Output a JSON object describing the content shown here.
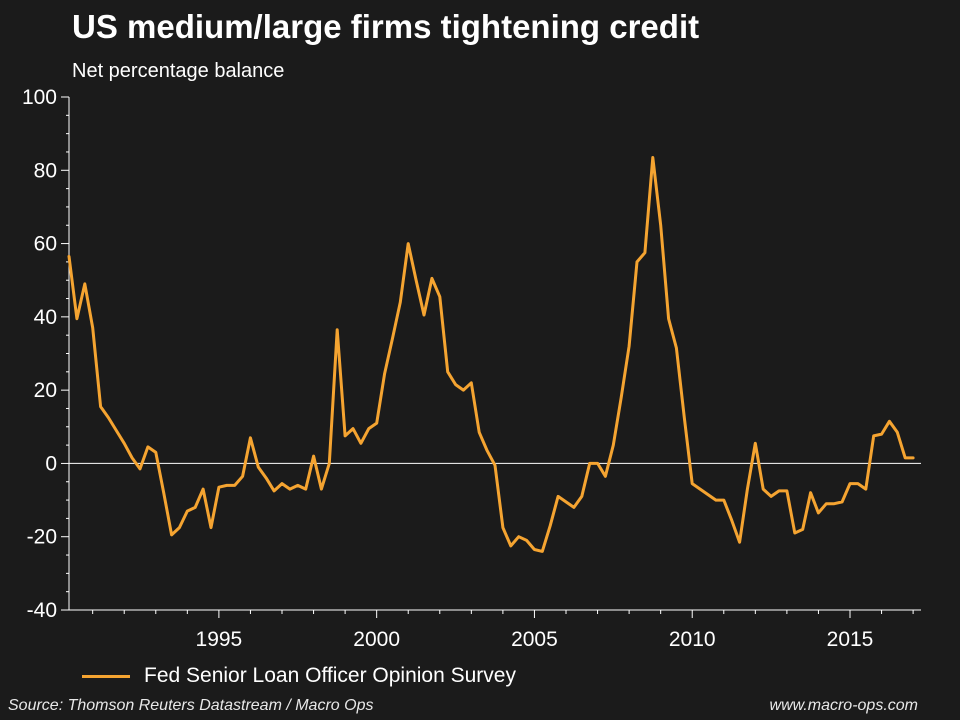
{
  "chart_data": {
    "type": "line",
    "title": "US medium/large firms tightening credit",
    "subtitle": "Net percentage balance",
    "xlabel": "",
    "ylabel": "",
    "xlim": [
      1990.25,
      2017.25
    ],
    "ylim": [
      -40,
      100
    ],
    "yticks": [
      -40,
      -20,
      0,
      20,
      40,
      60,
      80,
      100
    ],
    "xticks": [
      1995,
      2000,
      2005,
      2010,
      2015
    ],
    "zero_line": true,
    "grid": false,
    "legend_position": "bottom-left",
    "series": [
      {
        "name": "Fed Senior Loan Officer Opinion Survey",
        "color": "#f5a431",
        "points": [
          [
            1990.25,
            56.5
          ],
          [
            1990.5,
            39.5
          ],
          [
            1990.75,
            49
          ],
          [
            1991.0,
            37
          ],
          [
            1991.25,
            15.5
          ],
          [
            1991.5,
            12.5
          ],
          [
            1991.75,
            9
          ],
          [
            1992.0,
            5.5
          ],
          [
            1992.25,
            1.5
          ],
          [
            1992.5,
            -1.5
          ],
          [
            1992.75,
            4.5
          ],
          [
            1993.0,
            3
          ],
          [
            1993.25,
            -8
          ],
          [
            1993.5,
            -19.5
          ],
          [
            1993.75,
            -17.5
          ],
          [
            1994.0,
            -13
          ],
          [
            1994.25,
            -12
          ],
          [
            1994.5,
            -7
          ],
          [
            1994.75,
            -17.5
          ],
          [
            1995.0,
            -6.5
          ],
          [
            1995.25,
            -6
          ],
          [
            1995.5,
            -6
          ],
          [
            1995.75,
            -3.5
          ],
          [
            1996.0,
            7
          ],
          [
            1996.25,
            -1
          ],
          [
            1996.5,
            -4
          ],
          [
            1996.75,
            -7.5
          ],
          [
            1997.0,
            -5.5
          ],
          [
            1997.25,
            -7
          ],
          [
            1997.5,
            -6
          ],
          [
            1997.75,
            -7
          ],
          [
            1998.0,
            2
          ],
          [
            1998.25,
            -7
          ],
          [
            1998.5,
            0
          ],
          [
            1998.75,
            36.5
          ],
          [
            1999.0,
            7.5
          ],
          [
            1999.25,
            9.5
          ],
          [
            1999.5,
            5.5
          ],
          [
            1999.75,
            9.5
          ],
          [
            2000.0,
            11
          ],
          [
            2000.25,
            24.5
          ],
          [
            2000.5,
            34
          ],
          [
            2000.75,
            44
          ],
          [
            2001.0,
            60
          ],
          [
            2001.25,
            50
          ],
          [
            2001.5,
            40.5
          ],
          [
            2001.75,
            50.5
          ],
          [
            2002.0,
            45.5
          ],
          [
            2002.25,
            25
          ],
          [
            2002.5,
            21.5
          ],
          [
            2002.75,
            20
          ],
          [
            2003.0,
            22
          ],
          [
            2003.25,
            8.5
          ],
          [
            2003.5,
            3.5
          ],
          [
            2003.75,
            -0.5
          ],
          [
            2004.0,
            -17.5
          ],
          [
            2004.25,
            -22.5
          ],
          [
            2004.5,
            -20
          ],
          [
            2004.75,
            -21
          ],
          [
            2005.0,
            -23.5
          ],
          [
            2005.25,
            -24
          ],
          [
            2005.5,
            -17
          ],
          [
            2005.75,
            -9
          ],
          [
            2006.0,
            -10.5
          ],
          [
            2006.25,
            -12
          ],
          [
            2006.5,
            -9
          ],
          [
            2006.75,
            0
          ],
          [
            2007.0,
            0
          ],
          [
            2007.25,
            -3.5
          ],
          [
            2007.5,
            5
          ],
          [
            2007.75,
            18
          ],
          [
            2008.0,
            32
          ],
          [
            2008.25,
            55
          ],
          [
            2008.5,
            57.5
          ],
          [
            2008.75,
            83.5
          ],
          [
            2009.0,
            65
          ],
          [
            2009.25,
            39.5
          ],
          [
            2009.5,
            31.5
          ],
          [
            2009.75,
            12.5
          ],
          [
            2010.0,
            -5.5
          ],
          [
            2010.25,
            -7
          ],
          [
            2010.5,
            -8.5
          ],
          [
            2010.75,
            -10
          ],
          [
            2011.0,
            -10
          ],
          [
            2011.25,
            -15.5
          ],
          [
            2011.5,
            -21.5
          ],
          [
            2011.75,
            -7
          ],
          [
            2012.0,
            5.5
          ],
          [
            2012.25,
            -7
          ],
          [
            2012.5,
            -9
          ],
          [
            2012.75,
            -7.5
          ],
          [
            2013.0,
            -7.5
          ],
          [
            2013.25,
            -19
          ],
          [
            2013.5,
            -18
          ],
          [
            2013.75,
            -8
          ],
          [
            2014.0,
            -13.5
          ],
          [
            2014.25,
            -11
          ],
          [
            2014.5,
            -11
          ],
          [
            2014.75,
            -10.5
          ],
          [
            2015.0,
            -5.5
          ],
          [
            2015.25,
            -5.5
          ],
          [
            2015.5,
            -7
          ],
          [
            2015.75,
            7.5
          ],
          [
            2016.0,
            8
          ],
          [
            2016.25,
            11.5
          ],
          [
            2016.5,
            8.5
          ],
          [
            2016.75,
            1.5
          ],
          [
            2017.0,
            1.5
          ]
        ]
      }
    ]
  },
  "footer": {
    "source": "Source: Thomson Reuters Datastream / Macro Ops",
    "website": "www.macro-ops.com"
  }
}
